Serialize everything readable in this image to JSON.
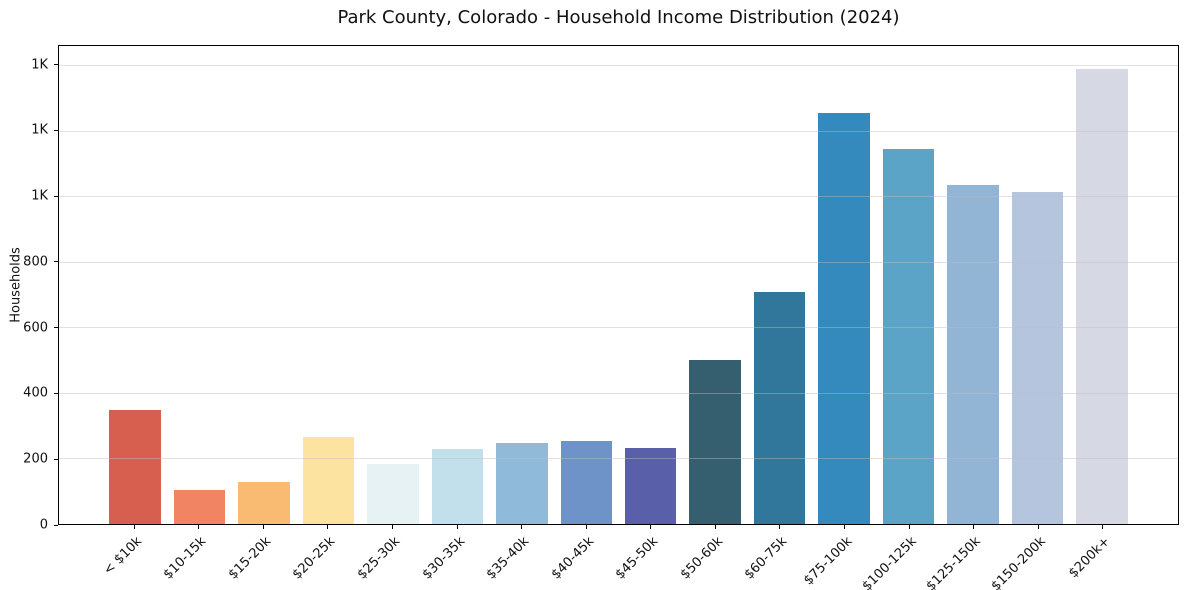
{
  "chart_data": {
    "type": "bar",
    "title": "Park County, Colorado - Household Income Distribution (2024)",
    "xlabel": "",
    "ylabel": "Households",
    "ylim": [
      0,
      1460
    ],
    "grid": true,
    "legend": "none",
    "background_color": "#ffffff",
    "categories": [
      "< $10k",
      "$10-15k",
      "$15-20k",
      "$20-25k",
      "$25-30k",
      "$30-35k",
      "$35-40k",
      "$40-45k",
      "$45-50k",
      "$50-60k",
      "$60-75k",
      "$75-100k",
      "$100-125k",
      "$125-150k",
      "$150-200k",
      "$200k+"
    ],
    "values": [
      348,
      105,
      127,
      265,
      182,
      230,
      248,
      255,
      233,
      500,
      710,
      1255,
      1145,
      1035,
      1015,
      1390
    ],
    "bar_colors": [
      "#d65f50",
      "#f18563",
      "#f9ba72",
      "#fce3a0",
      "#e6f2f3",
      "#c2e0eb",
      "#8fbada",
      "#6e93c8",
      "#5a5fa9",
      "#355e6e",
      "#31769b",
      "#3489bd",
      "#5ba4c8",
      "#92b4d5",
      "#b5c5dd",
      "#d6d9e4"
    ],
    "y_ticks": [
      {
        "value": 0,
        "label": "0"
      },
      {
        "value": 200,
        "label": "200"
      },
      {
        "value": 400,
        "label": "400"
      },
      {
        "value": 600,
        "label": "600"
      },
      {
        "value": 800,
        "label": "800"
      },
      {
        "value": 1000,
        "label": "1K"
      },
      {
        "value": 1200,
        "label": "1K"
      },
      {
        "value": 1400,
        "label": "1K"
      }
    ]
  }
}
